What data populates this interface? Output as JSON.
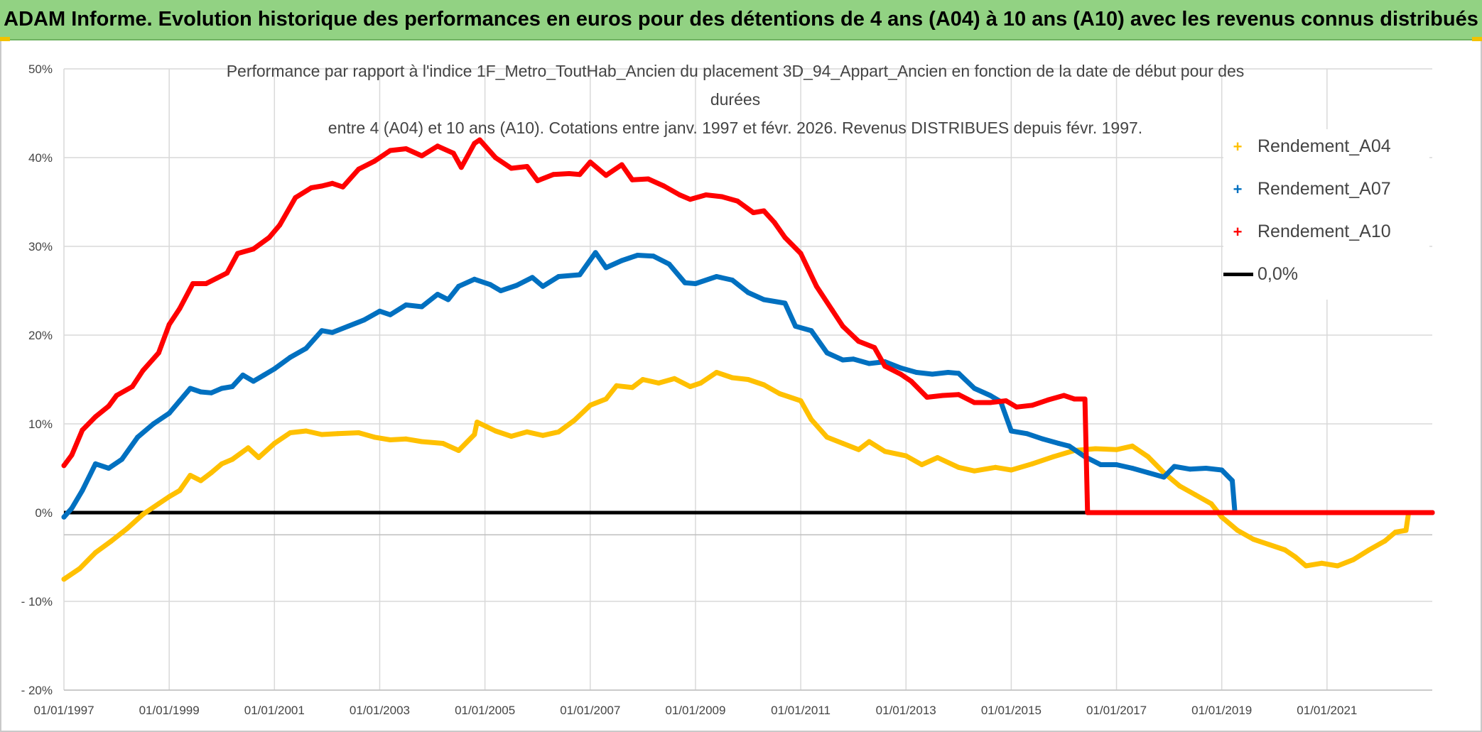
{
  "banner": {
    "text": "ADAM Informe. Evolution historique des performances en euros pour des détentions de 4 ans (A04) à 10 ans (A10) avec les revenus connus distribués"
  },
  "chart_data": {
    "type": "line",
    "title_lines": [
      "Performance par rapport à l'indice 1F_Metro_ToutHab_Ancien  du placement 3D_94_Appart_Ancien en fonction de la date de début pour des",
      "durées",
      "entre 4 (A04) et 10 ans (A10). Cotations entre janv. 1997 et févr. 2026. Revenus DISTRIBUES depuis févr. 1997."
    ],
    "x_axis": {
      "min": 1997.0,
      "max": 2023.0,
      "tick_values": [
        1997,
        1999,
        2001,
        2003,
        2005,
        2007,
        2009,
        2011,
        2013,
        2015,
        2017,
        2019,
        2021
      ],
      "tick_labels": [
        "01/01/1997",
        "01/01/1999",
        "01/01/2001",
        "01/01/2003",
        "01/01/2005",
        "01/01/2007",
        "01/01/2009",
        "01/01/2011",
        "01/01/2013",
        "01/01/2015",
        "01/01/2017",
        "01/01/2019",
        "01/01/2021"
      ]
    },
    "y_axis": {
      "min": -20,
      "max": 50,
      "tick_values": [
        50,
        40,
        30,
        20,
        10,
        0,
        -10,
        -20
      ],
      "tick_labels": [
        "50%",
        "40%",
        "30%",
        "20%",
        "10%",
        "0%",
        "- 10%",
        "- 20%"
      ]
    },
    "grid": true,
    "legend_position": "top-right",
    "zero_line": {
      "name": "0,0%",
      "value": 0,
      "color": "#000000"
    },
    "series": [
      {
        "name": "Rendement_A04",
        "color": "#ffc000",
        "points": [
          [
            1997.0,
            -7.5
          ],
          [
            1997.3,
            -6.3
          ],
          [
            1997.6,
            -4.5
          ],
          [
            1997.9,
            -3.2
          ],
          [
            1998.2,
            -1.8
          ],
          [
            1998.5,
            -0.2
          ],
          [
            1998.8,
            1.0
          ],
          [
            1999.0,
            1.8
          ],
          [
            1999.2,
            2.5
          ],
          [
            1999.4,
            4.2
          ],
          [
            1999.6,
            3.6
          ],
          [
            1999.8,
            4.5
          ],
          [
            2000.0,
            5.5
          ],
          [
            2000.2,
            6.0
          ],
          [
            2000.5,
            7.3
          ],
          [
            2000.7,
            6.2
          ],
          [
            2001.0,
            7.8
          ],
          [
            2001.3,
            9.0
          ],
          [
            2001.6,
            9.2
          ],
          [
            2001.9,
            8.8
          ],
          [
            2002.2,
            8.9
          ],
          [
            2002.6,
            9.0
          ],
          [
            2002.9,
            8.5
          ],
          [
            2003.2,
            8.2
          ],
          [
            2003.5,
            8.3
          ],
          [
            2003.8,
            8.0
          ],
          [
            2004.2,
            7.8
          ],
          [
            2004.5,
            7.0
          ],
          [
            2004.8,
            8.8
          ],
          [
            2004.85,
            10.2
          ],
          [
            2005.2,
            9.2
          ],
          [
            2005.5,
            8.6
          ],
          [
            2005.8,
            9.1
          ],
          [
            2006.1,
            8.7
          ],
          [
            2006.4,
            9.1
          ],
          [
            2006.7,
            10.4
          ],
          [
            2007.0,
            12.1
          ],
          [
            2007.3,
            12.8
          ],
          [
            2007.5,
            14.3
          ],
          [
            2007.8,
            14.1
          ],
          [
            2008.0,
            15.0
          ],
          [
            2008.3,
            14.6
          ],
          [
            2008.6,
            15.1
          ],
          [
            2008.9,
            14.2
          ],
          [
            2009.1,
            14.6
          ],
          [
            2009.4,
            15.8
          ],
          [
            2009.7,
            15.2
          ],
          [
            2010.0,
            15.0
          ],
          [
            2010.3,
            14.4
          ],
          [
            2010.6,
            13.4
          ],
          [
            2011.0,
            12.6
          ],
          [
            2011.2,
            10.5
          ],
          [
            2011.5,
            8.5
          ],
          [
            2011.8,
            7.8
          ],
          [
            2012.1,
            7.1
          ],
          [
            2012.3,
            8.0
          ],
          [
            2012.6,
            6.9
          ],
          [
            2013.0,
            6.4
          ],
          [
            2013.3,
            5.4
          ],
          [
            2013.6,
            6.2
          ],
          [
            2014.0,
            5.1
          ],
          [
            2014.3,
            4.7
          ],
          [
            2014.7,
            5.1
          ],
          [
            2015.0,
            4.8
          ],
          [
            2015.4,
            5.5
          ],
          [
            2015.8,
            6.3
          ],
          [
            2016.2,
            7.0
          ],
          [
            2016.6,
            7.2
          ],
          [
            2017.0,
            7.1
          ],
          [
            2017.3,
            7.5
          ],
          [
            2017.6,
            6.3
          ],
          [
            2017.9,
            4.5
          ],
          [
            2018.2,
            3.0
          ],
          [
            2018.5,
            2.0
          ],
          [
            2018.8,
            1.0
          ],
          [
            2019.0,
            -0.5
          ],
          [
            2019.3,
            -2.0
          ],
          [
            2019.6,
            -3.0
          ],
          [
            2019.9,
            -3.6
          ],
          [
            2020.2,
            -4.2
          ],
          [
            2020.4,
            -5.0
          ],
          [
            2020.6,
            -6.0
          ],
          [
            2020.9,
            -5.7
          ],
          [
            2021.2,
            -6.0
          ],
          [
            2021.5,
            -5.3
          ],
          [
            2021.8,
            -4.2
          ],
          [
            2022.1,
            -3.2
          ],
          [
            2022.3,
            -2.2
          ],
          [
            2022.5,
            -2.0
          ],
          [
            2022.55,
            0.0
          ],
          [
            2023.0,
            0.0
          ]
        ]
      },
      {
        "name": "Rendement_A07",
        "color": "#0070c0",
        "points": [
          [
            1997.0,
            -0.5
          ],
          [
            1997.15,
            0.5
          ],
          [
            1997.35,
            2.5
          ],
          [
            1997.6,
            5.5
          ],
          [
            1997.85,
            5.0
          ],
          [
            1998.1,
            6.0
          ],
          [
            1998.4,
            8.5
          ],
          [
            1998.7,
            10.0
          ],
          [
            1999.0,
            11.2
          ],
          [
            1999.2,
            12.6
          ],
          [
            1999.4,
            14.0
          ],
          [
            1999.6,
            13.6
          ],
          [
            1999.8,
            13.5
          ],
          [
            2000.0,
            14.0
          ],
          [
            2000.2,
            14.2
          ],
          [
            2000.4,
            15.5
          ],
          [
            2000.6,
            14.8
          ],
          [
            2000.8,
            15.5
          ],
          [
            2001.0,
            16.2
          ],
          [
            2001.3,
            17.5
          ],
          [
            2001.6,
            18.5
          ],
          [
            2001.9,
            20.5
          ],
          [
            2002.1,
            20.3
          ],
          [
            2002.4,
            21.0
          ],
          [
            2002.7,
            21.7
          ],
          [
            2003.0,
            22.7
          ],
          [
            2003.2,
            22.3
          ],
          [
            2003.5,
            23.4
          ],
          [
            2003.8,
            23.2
          ],
          [
            2004.1,
            24.6
          ],
          [
            2004.3,
            24.0
          ],
          [
            2004.5,
            25.5
          ],
          [
            2004.8,
            26.3
          ],
          [
            2005.1,
            25.7
          ],
          [
            2005.3,
            25.0
          ],
          [
            2005.6,
            25.6
          ],
          [
            2005.9,
            26.5
          ],
          [
            2006.1,
            25.5
          ],
          [
            2006.4,
            26.6
          ],
          [
            2006.8,
            26.8
          ],
          [
            2007.1,
            29.3
          ],
          [
            2007.3,
            27.6
          ],
          [
            2007.6,
            28.4
          ],
          [
            2007.9,
            29.0
          ],
          [
            2008.2,
            28.9
          ],
          [
            2008.5,
            28.0
          ],
          [
            2008.8,
            25.9
          ],
          [
            2009.0,
            25.8
          ],
          [
            2009.4,
            26.6
          ],
          [
            2009.7,
            26.2
          ],
          [
            2010.0,
            24.8
          ],
          [
            2010.3,
            24.0
          ],
          [
            2010.7,
            23.6
          ],
          [
            2010.9,
            21.0
          ],
          [
            2011.2,
            20.5
          ],
          [
            2011.5,
            18.0
          ],
          [
            2011.8,
            17.2
          ],
          [
            2012.0,
            17.3
          ],
          [
            2012.3,
            16.8
          ],
          [
            2012.6,
            17.0
          ],
          [
            2012.9,
            16.3
          ],
          [
            2013.2,
            15.8
          ],
          [
            2013.5,
            15.6
          ],
          [
            2013.8,
            15.8
          ],
          [
            2014.0,
            15.7
          ],
          [
            2014.3,
            14.0
          ],
          [
            2014.6,
            13.2
          ],
          [
            2014.8,
            12.5
          ],
          [
            2015.0,
            9.2
          ],
          [
            2015.3,
            8.9
          ],
          [
            2015.6,
            8.3
          ],
          [
            2015.9,
            7.8
          ],
          [
            2016.1,
            7.5
          ],
          [
            2016.4,
            6.3
          ],
          [
            2016.7,
            5.4
          ],
          [
            2017.0,
            5.4
          ],
          [
            2017.3,
            5.0
          ],
          [
            2017.6,
            4.5
          ],
          [
            2017.9,
            4.0
          ],
          [
            2018.1,
            5.2
          ],
          [
            2018.4,
            4.9
          ],
          [
            2018.7,
            5.0
          ],
          [
            2019.0,
            4.8
          ],
          [
            2019.2,
            3.6
          ],
          [
            2019.25,
            0.0
          ],
          [
            2023.0,
            0.0
          ]
        ]
      },
      {
        "name": "Rendement_A10",
        "color": "#ff0000",
        "points": [
          [
            1997.0,
            5.3
          ],
          [
            1997.15,
            6.5
          ],
          [
            1997.35,
            9.3
          ],
          [
            1997.6,
            10.8
          ],
          [
            1997.85,
            12.0
          ],
          [
            1998.0,
            13.2
          ],
          [
            1998.3,
            14.2
          ],
          [
            1998.5,
            16.0
          ],
          [
            1998.8,
            18.0
          ],
          [
            1999.0,
            21.2
          ],
          [
            1999.2,
            23.0
          ],
          [
            1999.45,
            25.8
          ],
          [
            1999.7,
            25.8
          ],
          [
            1999.9,
            26.4
          ],
          [
            2000.1,
            27.0
          ],
          [
            2000.3,
            29.2
          ],
          [
            2000.6,
            29.7
          ],
          [
            2000.9,
            31.0
          ],
          [
            2001.1,
            32.4
          ],
          [
            2001.4,
            35.5
          ],
          [
            2001.7,
            36.6
          ],
          [
            2001.9,
            36.8
          ],
          [
            2002.1,
            37.1
          ],
          [
            2002.3,
            36.7
          ],
          [
            2002.6,
            38.7
          ],
          [
            2002.9,
            39.6
          ],
          [
            2003.2,
            40.8
          ],
          [
            2003.5,
            41.0
          ],
          [
            2003.8,
            40.2
          ],
          [
            2004.1,
            41.3
          ],
          [
            2004.4,
            40.5
          ],
          [
            2004.55,
            38.9
          ],
          [
            2004.8,
            41.6
          ],
          [
            2004.9,
            42.0
          ],
          [
            2005.2,
            40.0
          ],
          [
            2005.5,
            38.8
          ],
          [
            2005.8,
            39.0
          ],
          [
            2006.0,
            37.4
          ],
          [
            2006.3,
            38.1
          ],
          [
            2006.6,
            38.2
          ],
          [
            2006.8,
            38.1
          ],
          [
            2007.0,
            39.5
          ],
          [
            2007.3,
            38.0
          ],
          [
            2007.6,
            39.2
          ],
          [
            2007.8,
            37.5
          ],
          [
            2008.1,
            37.6
          ],
          [
            2008.4,
            36.8
          ],
          [
            2008.7,
            35.8
          ],
          [
            2008.9,
            35.3
          ],
          [
            2009.2,
            35.8
          ],
          [
            2009.5,
            35.6
          ],
          [
            2009.8,
            35.1
          ],
          [
            2010.1,
            33.8
          ],
          [
            2010.3,
            34.0
          ],
          [
            2010.5,
            32.7
          ],
          [
            2010.7,
            31.0
          ],
          [
            2011.0,
            29.2
          ],
          [
            2011.3,
            25.5
          ],
          [
            2011.6,
            22.8
          ],
          [
            2011.8,
            21.0
          ],
          [
            2012.1,
            19.3
          ],
          [
            2012.4,
            18.6
          ],
          [
            2012.6,
            16.5
          ],
          [
            2012.9,
            15.6
          ],
          [
            2013.1,
            14.8
          ],
          [
            2013.4,
            13.0
          ],
          [
            2013.7,
            13.2
          ],
          [
            2014.0,
            13.3
          ],
          [
            2014.3,
            12.4
          ],
          [
            2014.6,
            12.4
          ],
          [
            2014.9,
            12.6
          ],
          [
            2015.1,
            11.9
          ],
          [
            2015.4,
            12.1
          ],
          [
            2015.7,
            12.7
          ],
          [
            2016.0,
            13.2
          ],
          [
            2016.2,
            12.8
          ],
          [
            2016.4,
            12.8
          ],
          [
            2016.45,
            0.0
          ],
          [
            2023.0,
            0.0
          ]
        ]
      }
    ]
  }
}
